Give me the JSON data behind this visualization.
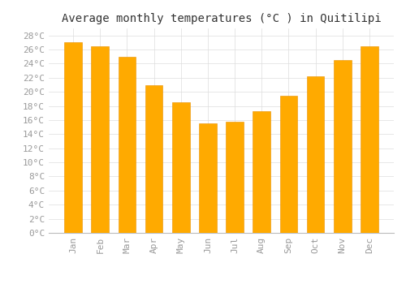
{
  "title": "Average monthly temperatures (°C ) in Quitilipi",
  "months": [
    "Jan",
    "Feb",
    "Mar",
    "Apr",
    "May",
    "Jun",
    "Jul",
    "Aug",
    "Sep",
    "Oct",
    "Nov",
    "Dec"
  ],
  "values": [
    27.0,
    26.5,
    25.0,
    21.0,
    18.5,
    15.5,
    15.8,
    17.3,
    19.5,
    22.2,
    24.5,
    26.5
  ],
  "bar_color": "#FFAA00",
  "bar_edge_color": "#E89000",
  "background_color": "#FFFFFF",
  "plot_bg_color": "#FFFFFF",
  "grid_color": "#DDDDDD",
  "tick_color": "#999999",
  "title_color": "#333333",
  "ylim": [
    0,
    29
  ],
  "ytick_step": 2,
  "title_fontsize": 10,
  "tick_fontsize": 8,
  "font_family": "monospace",
  "bar_width": 0.65
}
